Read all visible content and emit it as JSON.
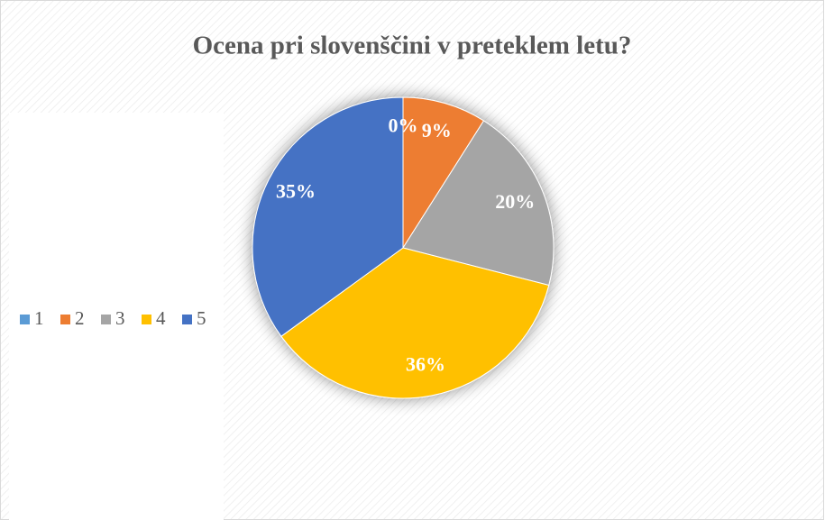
{
  "chart_data": {
    "type": "pie",
    "title": "Ocena pri slovenščini v preteklem letu?",
    "categories": [
      "1",
      "2",
      "3",
      "4",
      "5"
    ],
    "values": [
      0,
      9,
      20,
      36,
      35
    ],
    "value_labels": [
      "0%",
      "9%",
      "20%",
      "36%",
      "35%"
    ],
    "colors": [
      "#5b9bd5",
      "#ed7d31",
      "#a5a5a5",
      "#ffc000",
      "#4472c4"
    ],
    "legend": "left"
  }
}
